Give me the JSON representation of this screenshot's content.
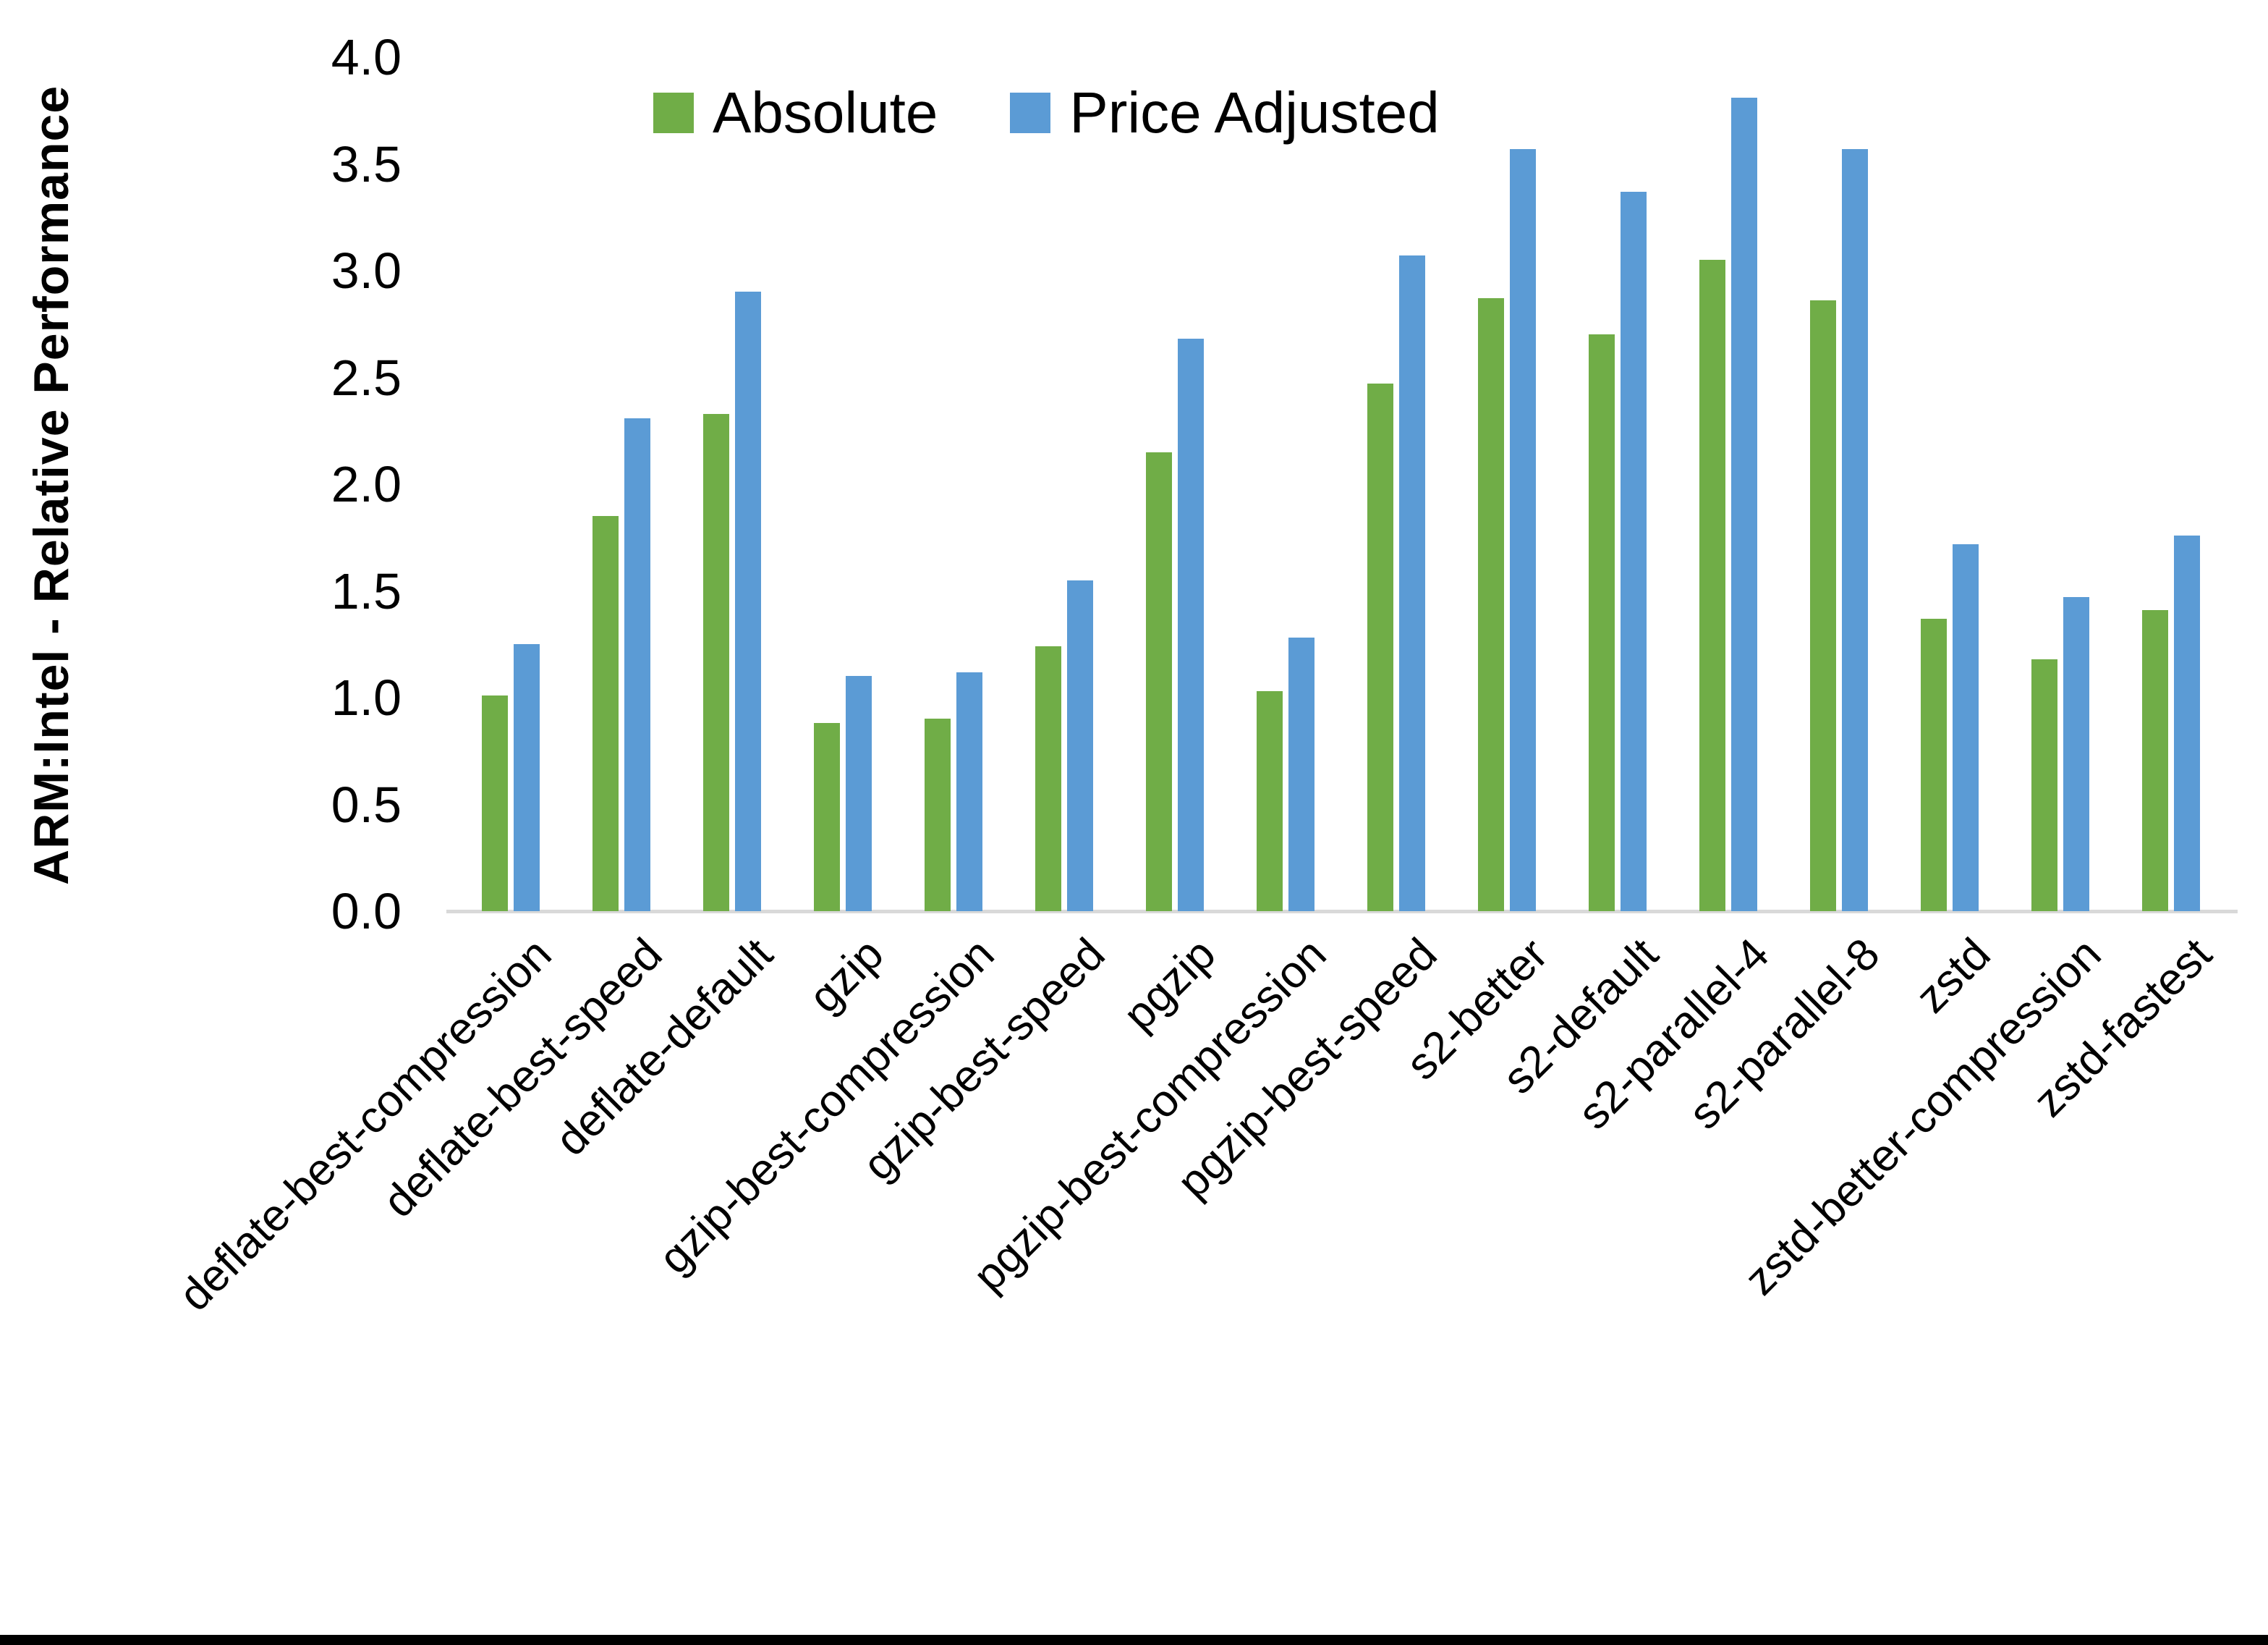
{
  "chart_data": {
    "type": "bar",
    "title": "",
    "xlabel": "",
    "ylabel": "ARM:Intel - Relative Performance",
    "ylim": [
      0.0,
      4.0
    ],
    "ytick_step": 0.5,
    "yticks": [
      "0.0",
      "0.5",
      "1.0",
      "1.5",
      "2.0",
      "2.5",
      "3.0",
      "3.5",
      "4.0"
    ],
    "grid": false,
    "legend_position": "top-center",
    "axis_line_color": "#D9D9D9",
    "categories": [
      "deflate-best-compression",
      "deflate-best-speed",
      "deflate-default",
      "gzip",
      "gzip-best-compression",
      "gzip-best-speed",
      "pgzip",
      "pgzip-best-compression",
      "pgzip-best-speed",
      "s2-better",
      "s2-default",
      "s2-parallel-4",
      "s2-parallel-8",
      "zstd",
      "zstd-better-compression",
      "zstd-fastest"
    ],
    "series": [
      {
        "name": "Absolute",
        "color": "#70AD47",
        "values": [
          1.01,
          1.85,
          2.33,
          0.88,
          0.9,
          1.24,
          2.15,
          1.03,
          2.47,
          2.87,
          2.7,
          3.05,
          2.86,
          1.37,
          1.18,
          1.41
        ]
      },
      {
        "name": "Price Adjusted",
        "color": "#5B9BD5",
        "values": [
          1.25,
          2.31,
          2.9,
          1.1,
          1.12,
          1.55,
          2.68,
          1.28,
          3.07,
          3.57,
          3.37,
          3.81,
          3.57,
          1.72,
          1.47,
          1.76
        ]
      }
    ]
  }
}
